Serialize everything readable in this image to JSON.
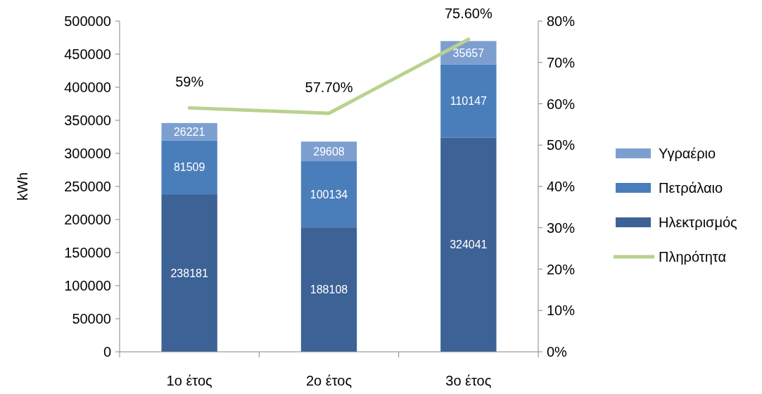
{
  "chart_data": {
    "type": "bar",
    "stacked": true,
    "ylabel": "kWh",
    "categories": [
      "1ο έτος",
      "2ο έτος",
      "3ο έτος"
    ],
    "series": [
      {
        "name": "Ηλεκτρισμός",
        "color": "#3c6296",
        "values": [
          238181,
          188108,
          324041
        ]
      },
      {
        "name": "Πετράλαιο",
        "color": "#4a7ebb",
        "values": [
          81509,
          100134,
          110147
        ]
      },
      {
        "name": "Υγραέριο",
        "color": "#7d9fd0",
        "values": [
          26221,
          29608,
          35657
        ]
      },
      {
        "name": "Πληρότητα",
        "type": "line",
        "axis": "y2",
        "color": "#b9d28e",
        "values": [
          59,
          57.7,
          75.6
        ],
        "value_labels": [
          "59%",
          "57.70%",
          "75.60%"
        ]
      }
    ],
    "data_labels": true,
    "ylim": [
      0,
      500000
    ],
    "yticks": [
      0,
      50000,
      100000,
      150000,
      200000,
      250000,
      300000,
      350000,
      400000,
      450000,
      500000
    ],
    "y2lim": [
      0,
      80
    ],
    "y2ticks": [
      {
        "value": 0,
        "label": "0%"
      },
      {
        "value": 10,
        "label": "10%"
      },
      {
        "value": 20,
        "label": "20%"
      },
      {
        "value": 30,
        "label": "30%"
      },
      {
        "value": 40,
        "label": "40%"
      },
      {
        "value": 50,
        "label": "50%"
      },
      {
        "value": 60,
        "label": "60%"
      },
      {
        "value": 70,
        "label": "70%"
      },
      {
        "value": 80,
        "label": "80%"
      }
    ],
    "grid": false,
    "legend": "right"
  }
}
